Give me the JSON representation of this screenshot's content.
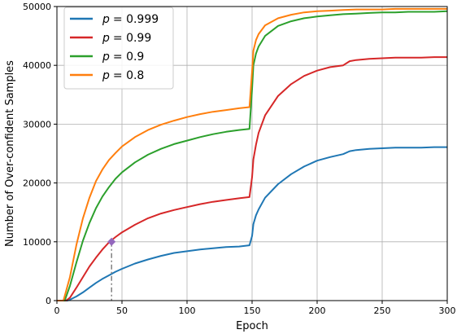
{
  "chart_data": {
    "type": "line",
    "xlabel": "Epoch",
    "ylabel": "Number of Over-confident Samples",
    "xlim": [
      0,
      300
    ],
    "ylim": [
      0,
      50000
    ],
    "xticks": [
      0,
      50,
      100,
      150,
      200,
      250,
      300
    ],
    "yticks": [
      0,
      10000,
      20000,
      30000,
      40000,
      50000
    ],
    "grid": true,
    "legend": "top-left",
    "series": [
      {
        "name": "p = 0.999",
        "legend_p": "p",
        "legend_value": "= 0.999",
        "color": "#1f77b4",
        "x": [
          0,
          5,
          8,
          10,
          15,
          20,
          25,
          30,
          35,
          40,
          45,
          50,
          60,
          70,
          80,
          90,
          100,
          110,
          120,
          130,
          140,
          148,
          150,
          151,
          153,
          155,
          160,
          170,
          180,
          190,
          200,
          210,
          220,
          225,
          230,
          240,
          250,
          260,
          270,
          280,
          290,
          300
        ],
        "y": [
          0,
          0,
          0,
          150,
          700,
          1400,
          2200,
          3000,
          3700,
          4300,
          4900,
          5400,
          6300,
          7000,
          7600,
          8100,
          8400,
          8700,
          8900,
          9100,
          9200,
          9400,
          11000,
          13000,
          14500,
          15500,
          17500,
          19800,
          21500,
          22800,
          23800,
          24400,
          24900,
          25400,
          25600,
          25800,
          25900,
          26000,
          26000,
          26000,
          26100,
          26100
        ]
      },
      {
        "name": "p = 0.99",
        "legend_p": "p",
        "legend_value": "= 0.99",
        "color": "#d62728",
        "x": [
          0,
          5,
          7,
          10,
          15,
          20,
          25,
          30,
          35,
          40,
          45,
          50,
          60,
          70,
          80,
          90,
          100,
          110,
          120,
          130,
          140,
          148,
          150,
          151,
          153,
          155,
          160,
          170,
          180,
          190,
          200,
          210,
          220,
          225,
          230,
          240,
          250,
          260,
          270,
          280,
          290,
          300
        ],
        "y": [
          0,
          0,
          0,
          500,
          2200,
          4000,
          5800,
          7300,
          8700,
          9900,
          10800,
          11600,
          12900,
          14000,
          14800,
          15400,
          15900,
          16400,
          16800,
          17100,
          17400,
          17600,
          21000,
          24000,
          26500,
          28500,
          31500,
          34800,
          36800,
          38200,
          39100,
          39700,
          40000,
          40700,
          40900,
          41100,
          41200,
          41300,
          41300,
          41300,
          41400,
          41400
        ]
      },
      {
        "name": "p = 0.9",
        "legend_p": "p",
        "legend_value": "= 0.9",
        "color": "#2ca02c",
        "x": [
          0,
          5,
          6,
          10,
          15,
          20,
          25,
          30,
          35,
          40,
          45,
          50,
          60,
          70,
          80,
          90,
          100,
          110,
          120,
          130,
          140,
          148,
          150,
          151,
          153,
          155,
          160,
          170,
          180,
          190,
          200,
          210,
          220,
          230,
          240,
          250,
          260,
          270,
          280,
          290,
          300
        ],
        "y": [
          0,
          0,
          0,
          2500,
          6500,
          10200,
          13200,
          15700,
          17700,
          19300,
          20700,
          21800,
          23500,
          24800,
          25800,
          26600,
          27200,
          27800,
          28300,
          28700,
          29000,
          29200,
          36000,
          40000,
          42000,
          43200,
          45000,
          46700,
          47500,
          48000,
          48300,
          48500,
          48700,
          48800,
          48900,
          49000,
          49000,
          49100,
          49100,
          49100,
          49200
        ]
      },
      {
        "name": "p = 0.8",
        "legend_p": "p",
        "legend_value": "= 0.8",
        "color": "#ff7f0e",
        "x": [
          0,
          4,
          5,
          10,
          15,
          20,
          25,
          30,
          35,
          40,
          45,
          50,
          60,
          70,
          80,
          90,
          100,
          110,
          120,
          130,
          140,
          148,
          150,
          151,
          153,
          155,
          160,
          170,
          180,
          190,
          200,
          210,
          220,
          230,
          240,
          250,
          260,
          270,
          280,
          290,
          300
        ],
        "y": [
          0,
          0,
          0,
          4000,
          9500,
          14000,
          17500,
          20300,
          22300,
          23900,
          25100,
          26200,
          27800,
          29000,
          29900,
          30600,
          31200,
          31700,
          32100,
          32400,
          32700,
          32900,
          39000,
          42500,
          44300,
          45300,
          46800,
          48000,
          48600,
          49000,
          49200,
          49300,
          49400,
          49500,
          49500,
          49500,
          49600,
          49600,
          49600,
          49600,
          49600
        ]
      }
    ],
    "annotation": {
      "x": 42,
      "y": 10000,
      "marker_color": "#9467bd",
      "line_color": "#808080"
    }
  }
}
